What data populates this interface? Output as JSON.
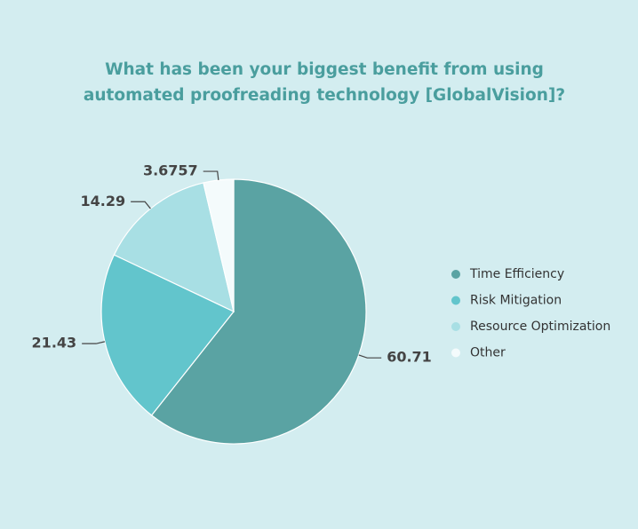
{
  "chart_data": {
    "type": "pie",
    "title": "What has been your biggest benefit from using automated proofreading technology [GlobalVision]?",
    "categories": [
      "Time Efficiency",
      "Risk Mitigation",
      "Resource Optimization",
      "Other"
    ],
    "values": [
      60.71,
      21.43,
      14.29,
      3.6757
    ],
    "colors": [
      "#5aa3a3",
      "#62c5cc",
      "#a8dfe4",
      "#f4fbfc"
    ]
  }
}
